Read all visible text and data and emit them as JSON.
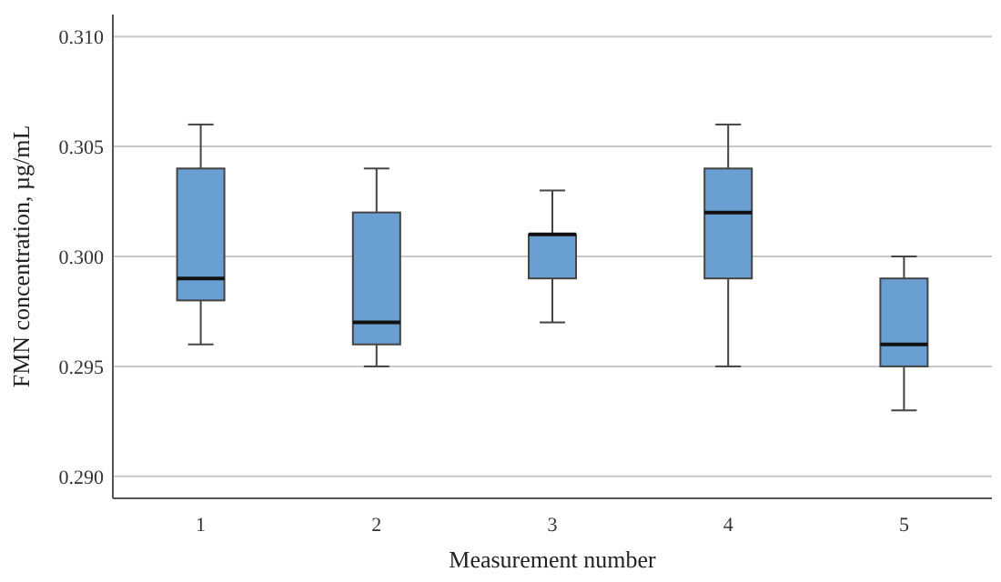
{
  "chart_data": {
    "type": "box",
    "xlabel": "Measurement number",
    "ylabel": "FMN concentration, µg/mL",
    "categories": [
      "1",
      "2",
      "3",
      "4",
      "5"
    ],
    "color": "#6a9fd2",
    "boxes": [
      {
        "low": 0.296,
        "q1": 0.298,
        "median": 0.299,
        "q3": 0.304,
        "high": 0.306
      },
      {
        "low": 0.295,
        "q1": 0.296,
        "median": 0.297,
        "q3": 0.302,
        "high": 0.304
      },
      {
        "low": 0.297,
        "q1": 0.299,
        "median": 0.301,
        "q3": 0.301,
        "high": 0.303
      },
      {
        "low": 0.295,
        "q1": 0.299,
        "median": 0.302,
        "q3": 0.304,
        "high": 0.306
      },
      {
        "low": 0.293,
        "q1": 0.295,
        "median": 0.296,
        "q3": 0.299,
        "high": 0.3
      }
    ],
    "ylim": [
      0.289,
      0.311
    ],
    "yticks": [
      {
        "value": 0.29,
        "label": "0.290"
      },
      {
        "value": 0.295,
        "label": "0.295"
      },
      {
        "value": 0.3,
        "label": "0.300"
      },
      {
        "value": 0.305,
        "label": "0.305"
      },
      {
        "value": 0.31,
        "label": "0.310"
      }
    ],
    "grid": "y"
  }
}
